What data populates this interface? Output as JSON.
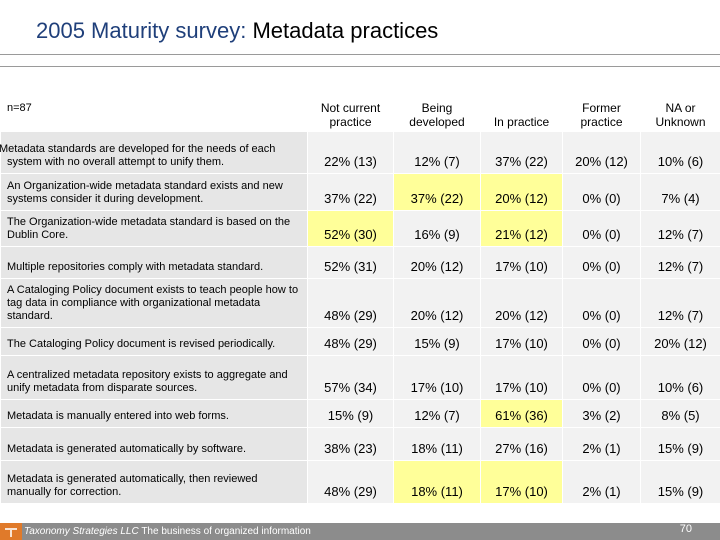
{
  "title": {
    "lead": "2005 Maturity survey:",
    "rest": "Metadata practices"
  },
  "table": {
    "n_label": "n=87",
    "columns": [
      "Not current practice",
      "Being developed",
      "In practice",
      "Former practice",
      "NA or Unknown"
    ],
    "rows": [
      {
        "label": "Metadata standards are developed for the needs of each system with no overall attempt to unify them.",
        "indent": true,
        "cells": [
          {
            "text": "22%  (13)"
          },
          {
            "text": "12%  (7)"
          },
          {
            "text": "37%  (22)"
          },
          {
            "text": "20%  (12)"
          },
          {
            "text": "10%  (6)"
          }
        ]
      },
      {
        "label": "An Organization-wide metadata standard exists and new systems consider it during development.",
        "cells": [
          {
            "text": "37%  (22)"
          },
          {
            "text": "37%  (22)",
            "highlight": true
          },
          {
            "text": "20%  (12)",
            "highlight": true
          },
          {
            "text": "0%  (0)"
          },
          {
            "text": "7%  (4)"
          }
        ]
      },
      {
        "label": "The Organization-wide metadata standard is based on the Dublin Core.",
        "cells": [
          {
            "text": "52%  (30)",
            "highlight": true
          },
          {
            "text": "16%  (9)"
          },
          {
            "text": "21%  (12)",
            "highlight": true
          },
          {
            "text": "0%  (0)"
          },
          {
            "text": "12%  (7)"
          }
        ]
      },
      {
        "label": "Multiple repositories comply with metadata standard.",
        "cells": [
          {
            "text": "52%  (31)"
          },
          {
            "text": "20%  (12)"
          },
          {
            "text": "17%  (10)"
          },
          {
            "text": "0%  (0)"
          },
          {
            "text": "12%  (7)"
          }
        ]
      },
      {
        "label": "A Cataloging Policy document exists to teach people how to tag data in compliance with organizational metadata standard.",
        "cells": [
          {
            "text": "48%  (29)"
          },
          {
            "text": "20%  (12)"
          },
          {
            "text": "20%  (12)"
          },
          {
            "text": "0%  (0)"
          },
          {
            "text": "12%  (7)"
          }
        ]
      },
      {
        "label": "The Cataloging Policy document is revised periodically.",
        "cells": [
          {
            "text": "48%  (29)"
          },
          {
            "text": "15%  (9)"
          },
          {
            "text": "17%  (10)"
          },
          {
            "text": "0%  (0)"
          },
          {
            "text": "20%  (12)"
          }
        ]
      },
      {
        "label": "A centralized metadata repository exists to aggregate and unify metadata from disparate sources.",
        "cells": [
          {
            "text": "57%  (34)"
          },
          {
            "text": "17%  (10)"
          },
          {
            "text": "17%  (10)"
          },
          {
            "text": "0%  (0)"
          },
          {
            "text": "10%  (6)"
          }
        ]
      },
      {
        "label": "Metadata is manually entered into web forms.",
        "cells": [
          {
            "text": "15%  (9)"
          },
          {
            "text": "12%  (7)"
          },
          {
            "text": "61%  (36)",
            "highlight": true
          },
          {
            "text": "3%  (2)"
          },
          {
            "text": "8%  (5)"
          }
        ]
      },
      {
        "label": "Metadata is generated automatically by software.",
        "cells": [
          {
            "text": "38%  (23)"
          },
          {
            "text": "18%  (11)"
          },
          {
            "text": "27%  (16)"
          },
          {
            "text": "2%  (1)"
          },
          {
            "text": "15%  (9)"
          }
        ]
      },
      {
        "label": "Metadata is generated automatically, then reviewed manually for correction.",
        "cells": [
          {
            "text": "48%  (29)"
          },
          {
            "text": "18%  (11)",
            "highlight": true
          },
          {
            "text": "17%  (10)",
            "highlight": true
          },
          {
            "text": "2%  (1)"
          },
          {
            "text": "15%  (9)"
          }
        ]
      }
    ]
  },
  "footer": {
    "brand": "Taxonomy Strategies LLC",
    "tagline": "The business of organized information",
    "page": "70"
  },
  "colors": {
    "title_lead": "#1f3f7a",
    "highlight": "#ffff99",
    "question_bg": "#e6e6e6",
    "value_bg": "#f2f2f2",
    "footer_bg": "#8c8c8c",
    "logo": "#e07a2a"
  }
}
